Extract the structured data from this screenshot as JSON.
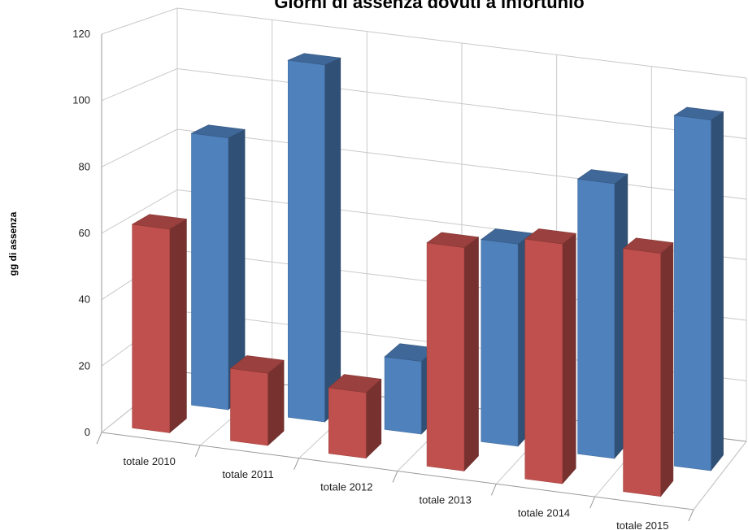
{
  "chart_data": {
    "type": "bar",
    "title": "Giorni di assenza dovuti a infortunio",
    "xlabel": "",
    "ylabel": "gg di assenza",
    "categories": [
      "totale 2010",
      "totale 2011",
      "totale 2012",
      "totale 2013",
      "totale 2014",
      "totale 2015"
    ],
    "yticks": [
      "0",
      "20",
      "40",
      "60",
      "80",
      "100",
      "120"
    ],
    "ylim": [
      0,
      120
    ],
    "grid": true,
    "style": "3d-clustered-depth",
    "series": [
      {
        "values": [
          62,
          22,
          20,
          68,
          73,
          74
        ],
        "color": "#c0504d"
      },
      {
        "values": [
          86,
          113,
          23,
          64,
          87,
          111
        ],
        "color": "#4f81bd"
      }
    ]
  }
}
